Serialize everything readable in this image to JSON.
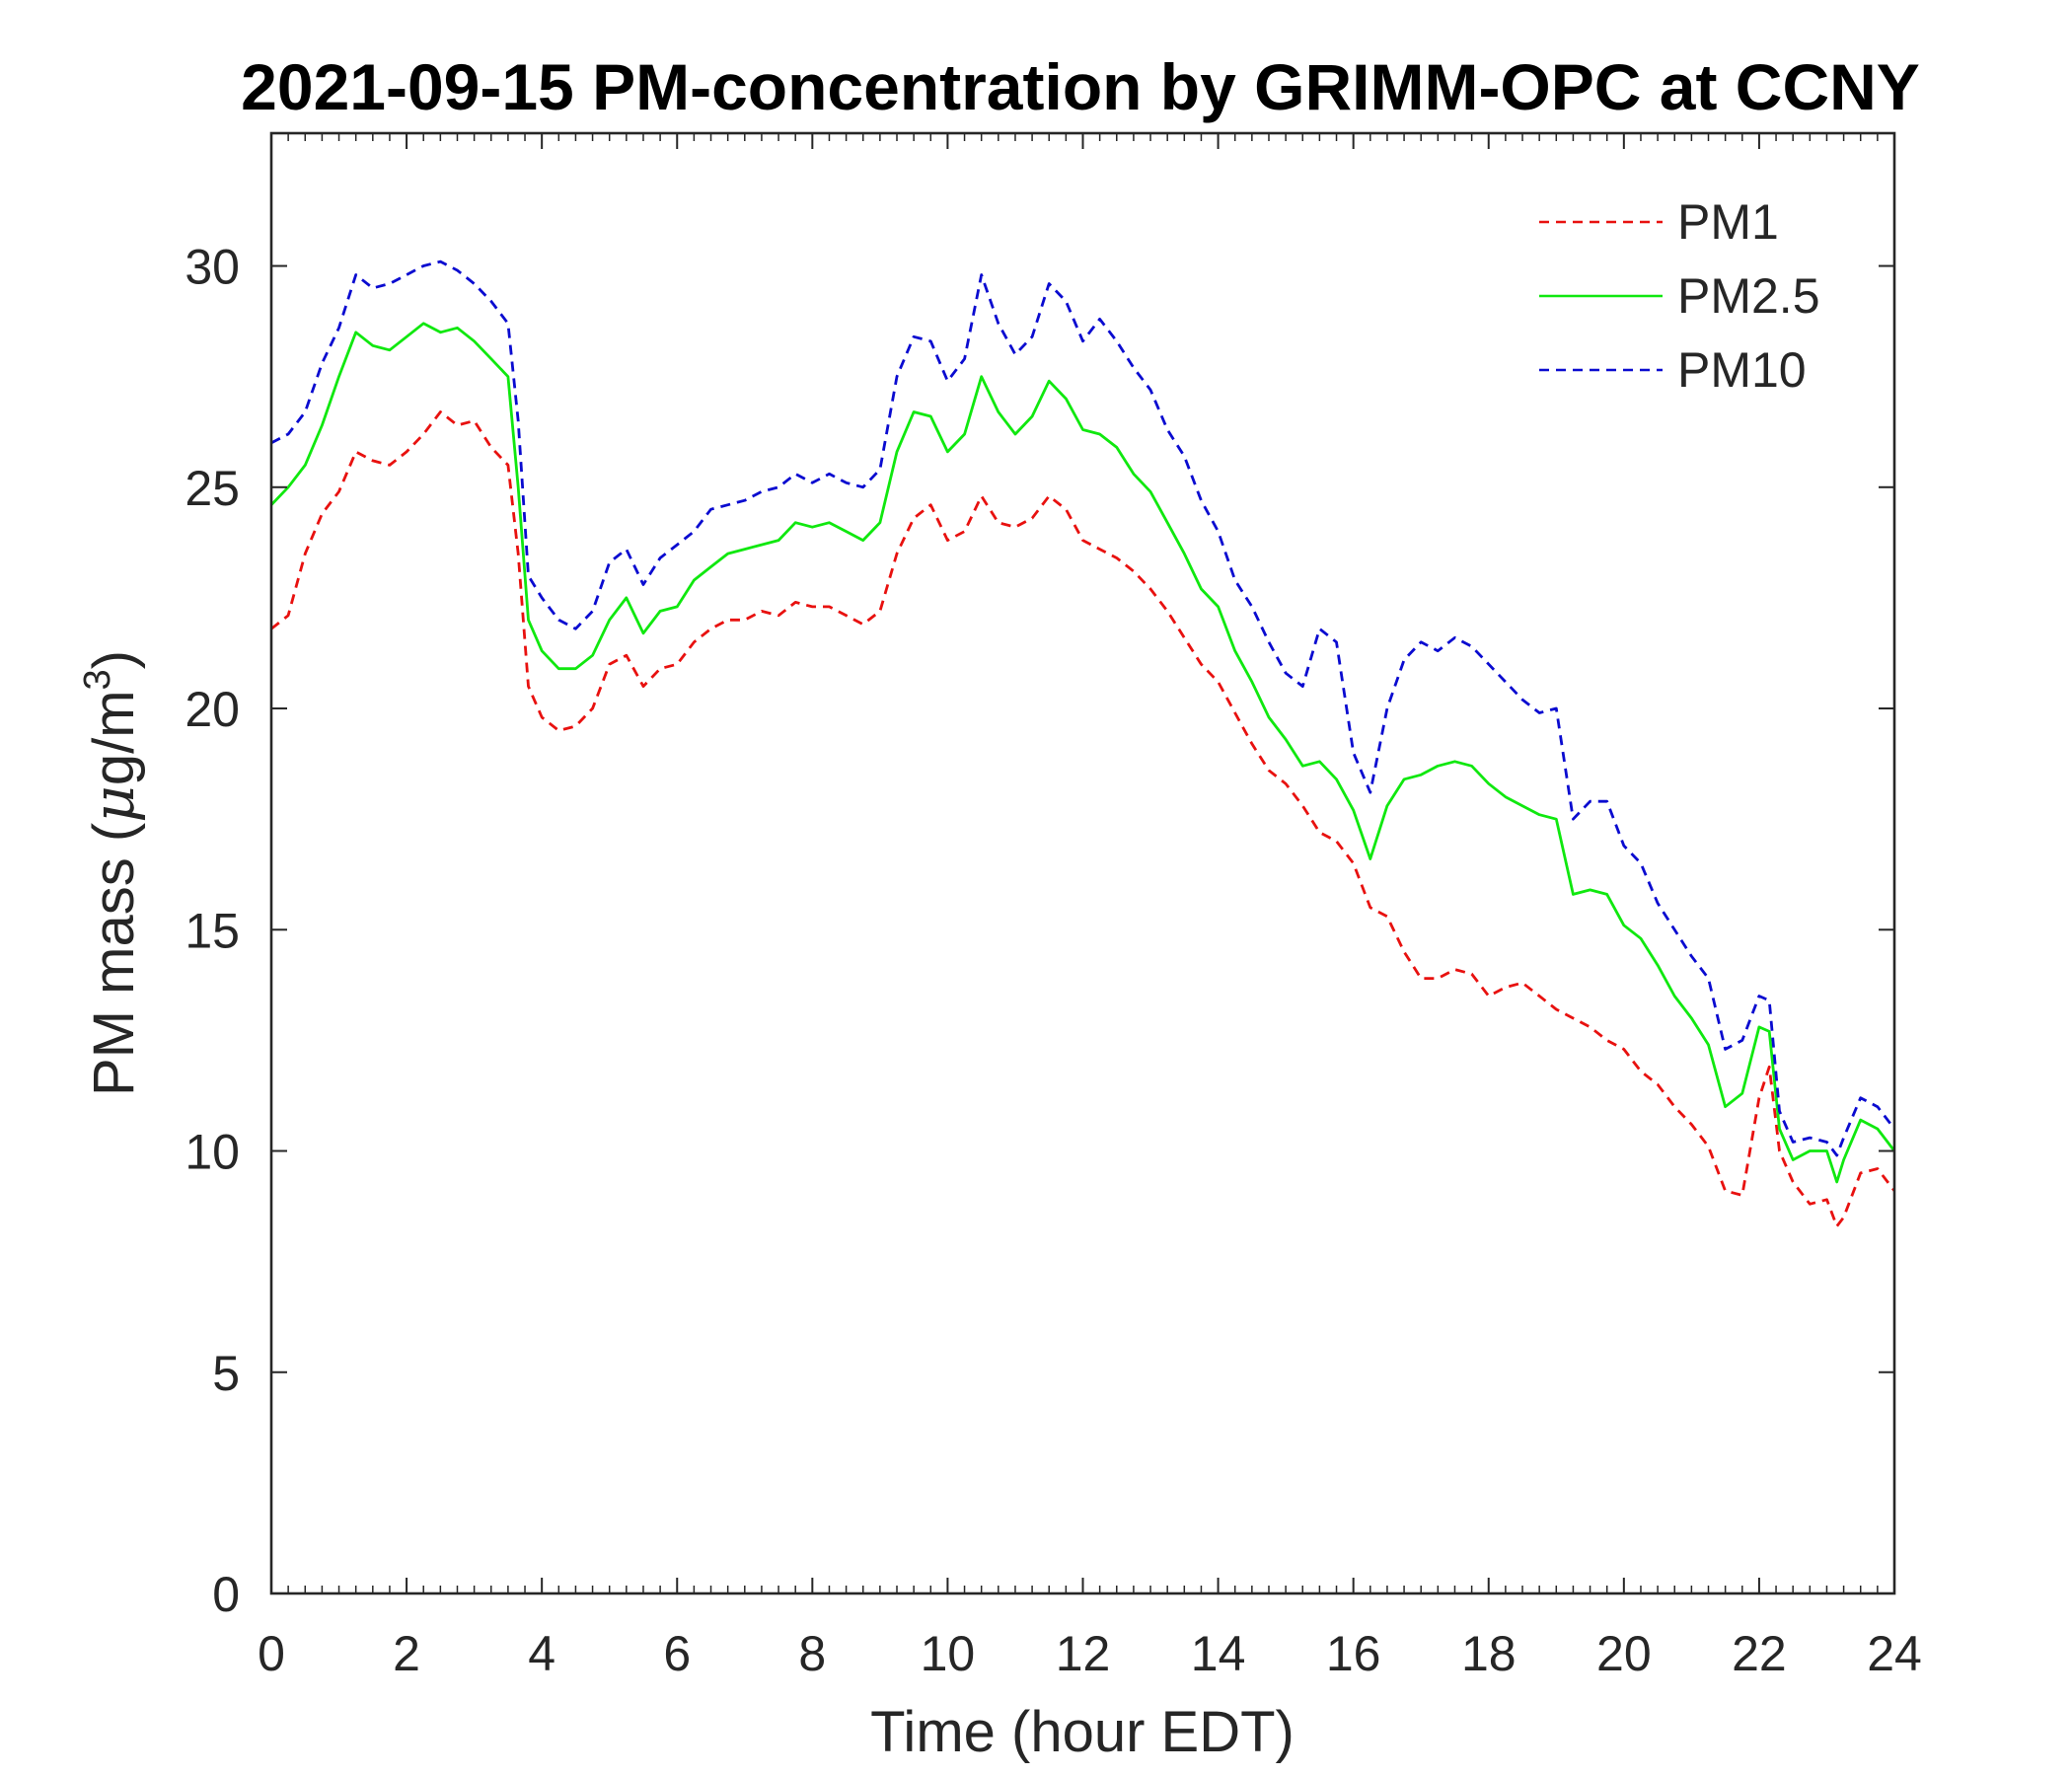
{
  "chart_data": {
    "type": "line",
    "title": "2021-09-15 PM-concentration by GRIMM-OPC at CCNY",
    "xlabel": "Time (hour EDT)",
    "ylabel": {
      "prefix": "PM mass (",
      "mu": "μ",
      "unit": "g/m",
      "superscript": "3",
      "suffix": ")"
    },
    "xlim": [
      0,
      24
    ],
    "ylim": [
      0,
      33
    ],
    "xticks": [
      0,
      2,
      4,
      6,
      8,
      10,
      12,
      14,
      16,
      18,
      20,
      22,
      24
    ],
    "xtick_labels": [
      "0",
      "2",
      "4",
      "6",
      "8",
      "10",
      "12",
      "14",
      "16",
      "18",
      "20",
      "22",
      "24"
    ],
    "yticks": [
      0,
      5,
      10,
      15,
      20,
      25,
      30
    ],
    "ytick_labels": [
      "0",
      "5",
      "10",
      "15",
      "20",
      "25",
      "30"
    ],
    "legend_position": "top-right",
    "series": [
      {
        "name": "PM1",
        "color": "#e8110f",
        "style": "dashed",
        "x": [
          0,
          0.25,
          0.5,
          0.75,
          1.0,
          1.25,
          1.5,
          1.75,
          2.0,
          2.25,
          2.5,
          2.75,
          3.0,
          3.25,
          3.5,
          3.65,
          3.8,
          4.0,
          4.25,
          4.5,
          4.75,
          5.0,
          5.25,
          5.5,
          5.75,
          6.0,
          6.25,
          6.5,
          6.75,
          7.0,
          7.25,
          7.5,
          7.75,
          8.0,
          8.25,
          8.5,
          8.75,
          9.0,
          9.25,
          9.5,
          9.75,
          10.0,
          10.25,
          10.5,
          10.75,
          11.0,
          11.25,
          11.5,
          11.75,
          12.0,
          12.25,
          12.5,
          12.75,
          13.0,
          13.25,
          13.5,
          13.75,
          14.0,
          14.25,
          14.5,
          14.75,
          15.0,
          15.25,
          15.5,
          15.75,
          16.0,
          16.25,
          16.5,
          16.75,
          17.0,
          17.25,
          17.5,
          17.75,
          18.0,
          18.25,
          18.5,
          18.75,
          19.0,
          19.25,
          19.5,
          19.75,
          20.0,
          20.25,
          20.5,
          20.75,
          21.0,
          21.25,
          21.5,
          21.75,
          22.0,
          22.15,
          22.3,
          22.5,
          22.75,
          23.0,
          23.15,
          23.25,
          23.5,
          23.75,
          24.0
        ],
        "values": [
          21.8,
          22.1,
          23.5,
          24.4,
          24.9,
          25.8,
          25.6,
          25.5,
          25.8,
          26.2,
          26.7,
          26.4,
          26.5,
          25.9,
          25.5,
          23.5,
          20.5,
          19.8,
          19.5,
          19.6,
          20.0,
          21.0,
          21.2,
          20.5,
          20.9,
          21.0,
          21.5,
          21.8,
          22.0,
          22.0,
          22.2,
          22.1,
          22.4,
          22.3,
          22.3,
          22.1,
          21.9,
          22.2,
          23.5,
          24.3,
          24.6,
          23.8,
          24.0,
          24.8,
          24.2,
          24.1,
          24.3,
          24.8,
          24.5,
          23.8,
          23.6,
          23.4,
          23.1,
          22.7,
          22.2,
          21.6,
          21.0,
          20.6,
          19.9,
          19.2,
          18.6,
          18.3,
          17.8,
          17.2,
          17.0,
          16.5,
          15.5,
          15.3,
          14.5,
          13.9,
          13.9,
          14.1,
          14.0,
          13.5,
          13.7,
          13.8,
          13.5,
          13.2,
          13.0,
          12.8,
          12.5,
          12.3,
          11.8,
          11.5,
          11.0,
          10.6,
          10.1,
          9.1,
          9.0,
          11.2,
          11.9,
          10.0,
          9.3,
          8.8,
          8.9,
          8.3,
          8.5,
          9.5,
          9.6,
          9.1
        ]
      },
      {
        "name": "PM2.5",
        "color": "#10e80f",
        "style": "solid",
        "x": [
          0,
          0.25,
          0.5,
          0.75,
          1.0,
          1.25,
          1.5,
          1.75,
          2.0,
          2.25,
          2.5,
          2.75,
          3.0,
          3.25,
          3.5,
          3.65,
          3.8,
          4.0,
          4.25,
          4.5,
          4.75,
          5.0,
          5.25,
          5.5,
          5.75,
          6.0,
          6.25,
          6.5,
          6.75,
          7.0,
          7.25,
          7.5,
          7.75,
          8.0,
          8.25,
          8.5,
          8.75,
          9.0,
          9.25,
          9.5,
          9.75,
          10.0,
          10.25,
          10.5,
          10.75,
          11.0,
          11.25,
          11.5,
          11.75,
          12.0,
          12.25,
          12.5,
          12.75,
          13.0,
          13.25,
          13.5,
          13.75,
          14.0,
          14.25,
          14.5,
          14.75,
          15.0,
          15.25,
          15.5,
          15.75,
          16.0,
          16.25,
          16.5,
          16.75,
          17.0,
          17.25,
          17.5,
          17.75,
          18.0,
          18.25,
          18.5,
          18.75,
          19.0,
          19.25,
          19.5,
          19.75,
          20.0,
          20.25,
          20.5,
          20.75,
          21.0,
          21.25,
          21.5,
          21.75,
          22.0,
          22.15,
          22.3,
          22.5,
          22.75,
          23.0,
          23.15,
          23.25,
          23.5,
          23.75,
          24.0
        ],
        "values": [
          24.6,
          25.0,
          25.5,
          26.4,
          27.5,
          28.5,
          28.2,
          28.1,
          28.4,
          28.7,
          28.5,
          28.6,
          28.3,
          27.9,
          27.5,
          25.0,
          22.0,
          21.3,
          20.9,
          20.9,
          21.2,
          22.0,
          22.5,
          21.7,
          22.2,
          22.3,
          22.9,
          23.2,
          23.5,
          23.6,
          23.7,
          23.8,
          24.2,
          24.1,
          24.2,
          24.0,
          23.8,
          24.2,
          25.8,
          26.7,
          26.6,
          25.8,
          26.2,
          27.5,
          26.7,
          26.2,
          26.6,
          27.4,
          27.0,
          26.3,
          26.2,
          25.9,
          25.3,
          24.9,
          24.2,
          23.5,
          22.7,
          22.3,
          21.3,
          20.6,
          19.8,
          19.3,
          18.7,
          18.8,
          18.4,
          17.7,
          16.6,
          17.8,
          18.4,
          18.5,
          18.7,
          18.8,
          18.7,
          18.3,
          18.0,
          17.8,
          17.6,
          17.5,
          15.8,
          15.9,
          15.8,
          15.1,
          14.8,
          14.2,
          13.5,
          13.0,
          12.4,
          11.0,
          11.3,
          12.8,
          12.7,
          10.5,
          9.8,
          10.0,
          10.0,
          9.3,
          9.8,
          10.7,
          10.5,
          10.0
        ]
      },
      {
        "name": "PM10",
        "color": "#0a0bd0",
        "style": "dashed",
        "x": [
          0,
          0.25,
          0.5,
          0.75,
          1.0,
          1.25,
          1.5,
          1.75,
          2.0,
          2.25,
          2.5,
          2.75,
          3.0,
          3.25,
          3.5,
          3.65,
          3.8,
          4.0,
          4.25,
          4.5,
          4.75,
          5.0,
          5.25,
          5.5,
          5.75,
          6.0,
          6.25,
          6.5,
          6.75,
          7.0,
          7.25,
          7.5,
          7.75,
          8.0,
          8.25,
          8.5,
          8.75,
          9.0,
          9.25,
          9.5,
          9.75,
          10.0,
          10.25,
          10.5,
          10.75,
          11.0,
          11.25,
          11.5,
          11.75,
          12.0,
          12.25,
          12.5,
          12.75,
          13.0,
          13.25,
          13.5,
          13.75,
          14.0,
          14.25,
          14.5,
          14.75,
          15.0,
          15.25,
          15.5,
          15.75,
          16.0,
          16.25,
          16.5,
          16.75,
          17.0,
          17.25,
          17.5,
          17.75,
          18.0,
          18.25,
          18.5,
          18.75,
          19.0,
          19.25,
          19.5,
          19.75,
          20.0,
          20.25,
          20.5,
          20.75,
          21.0,
          21.25,
          21.5,
          21.75,
          22.0,
          22.15,
          22.3,
          22.5,
          22.75,
          23.0,
          23.15,
          23.25,
          23.5,
          23.75,
          24.0
        ],
        "values": [
          26.0,
          26.2,
          26.7,
          27.8,
          28.6,
          29.8,
          29.5,
          29.6,
          29.8,
          30.0,
          30.1,
          29.9,
          29.6,
          29.2,
          28.7,
          26.5,
          23.0,
          22.5,
          22.0,
          21.8,
          22.2,
          23.3,
          23.6,
          22.8,
          23.4,
          23.7,
          24.0,
          24.5,
          24.6,
          24.7,
          24.9,
          25.0,
          25.3,
          25.1,
          25.3,
          25.1,
          25.0,
          25.4,
          27.5,
          28.4,
          28.3,
          27.4,
          27.9,
          29.8,
          28.7,
          28.0,
          28.4,
          29.6,
          29.2,
          28.3,
          28.8,
          28.3,
          27.7,
          27.2,
          26.3,
          25.7,
          24.7,
          24.0,
          22.9,
          22.3,
          21.5,
          20.8,
          20.5,
          21.8,
          21.5,
          19.0,
          18.1,
          20.0,
          21.1,
          21.5,
          21.3,
          21.6,
          21.4,
          21.0,
          20.6,
          20.2,
          19.9,
          20.0,
          17.5,
          17.9,
          17.9,
          16.9,
          16.5,
          15.6,
          15.0,
          14.4,
          13.9,
          12.3,
          12.5,
          13.5,
          13.4,
          10.9,
          10.2,
          10.3,
          10.2,
          9.9,
          10.3,
          11.2,
          11.0,
          10.5
        ]
      }
    ]
  }
}
